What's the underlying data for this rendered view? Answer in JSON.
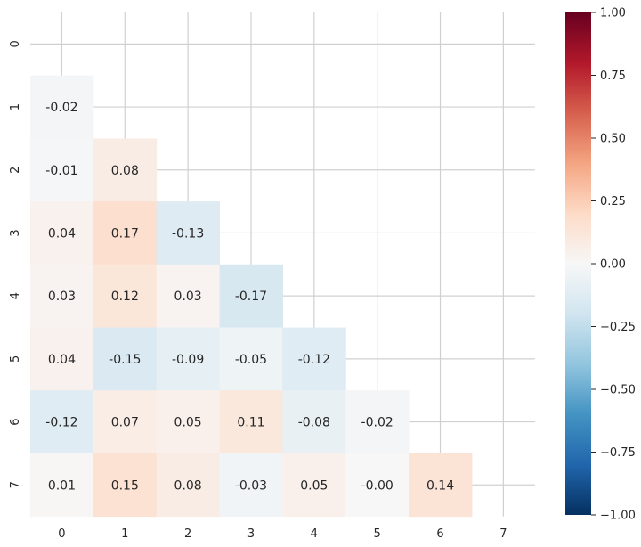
{
  "chart_data": {
    "type": "heatmap",
    "title": "",
    "xlabel": "",
    "ylabel": "",
    "mask": "upper-triangle-and-diagonal",
    "x_ticks": [
      "0",
      "1",
      "2",
      "3",
      "4",
      "5",
      "6",
      "7"
    ],
    "y_ticks": [
      "0",
      "1",
      "2",
      "3",
      "4",
      "5",
      "6",
      "7"
    ],
    "values": [
      [
        null,
        null,
        null,
        null,
        null,
        null,
        null,
        null
      ],
      [
        -0.02,
        null,
        null,
        null,
        null,
        null,
        null,
        null
      ],
      [
        -0.01,
        0.08,
        null,
        null,
        null,
        null,
        null,
        null
      ],
      [
        0.04,
        0.17,
        -0.13,
        null,
        null,
        null,
        null,
        null
      ],
      [
        0.03,
        0.12,
        0.03,
        -0.17,
        null,
        null,
        null,
        null
      ],
      [
        0.04,
        -0.15,
        -0.09,
        -0.05,
        -0.12,
        null,
        null,
        null
      ],
      [
        -0.12,
        0.07,
        0.05,
        0.11,
        -0.08,
        -0.02,
        null,
        null
      ],
      [
        0.01,
        0.15,
        0.08,
        -0.03,
        0.05,
        -0.0,
        0.14,
        null
      ]
    ],
    "labels": [
      [
        null,
        null,
        null,
        null,
        null,
        null,
        null,
        null
      ],
      [
        "-0.02",
        null,
        null,
        null,
        null,
        null,
        null,
        null
      ],
      [
        "-0.01",
        "0.08",
        null,
        null,
        null,
        null,
        null,
        null
      ],
      [
        "0.04",
        "0.17",
        "-0.13",
        null,
        null,
        null,
        null,
        null
      ],
      [
        "0.03",
        "0.12",
        "0.03",
        "-0.17",
        null,
        null,
        null,
        null
      ],
      [
        "0.04",
        "-0.15",
        "-0.09",
        "-0.05",
        "-0.12",
        null,
        null,
        null
      ],
      [
        "-0.12",
        "0.07",
        "0.05",
        "0.11",
        "-0.08",
        "-0.02",
        null,
        null
      ],
      [
        "0.01",
        "0.15",
        "0.08",
        "-0.03",
        "0.05",
        "-0.00",
        "0.14",
        null
      ]
    ],
    "colormap": "RdBu_r",
    "vmin": -1.0,
    "vmax": 1.0,
    "colorbar": {
      "ticks": [
        1.0,
        0.75,
        0.5,
        0.25,
        0.0,
        -0.25,
        -0.5,
        -0.75,
        -1.0
      ],
      "tick_labels": [
        "1.00",
        "0.75",
        "0.50",
        "0.25",
        "0.00",
        "−0.25",
        "−0.50",
        "−0.75",
        "−1.00"
      ]
    },
    "grid": true
  }
}
